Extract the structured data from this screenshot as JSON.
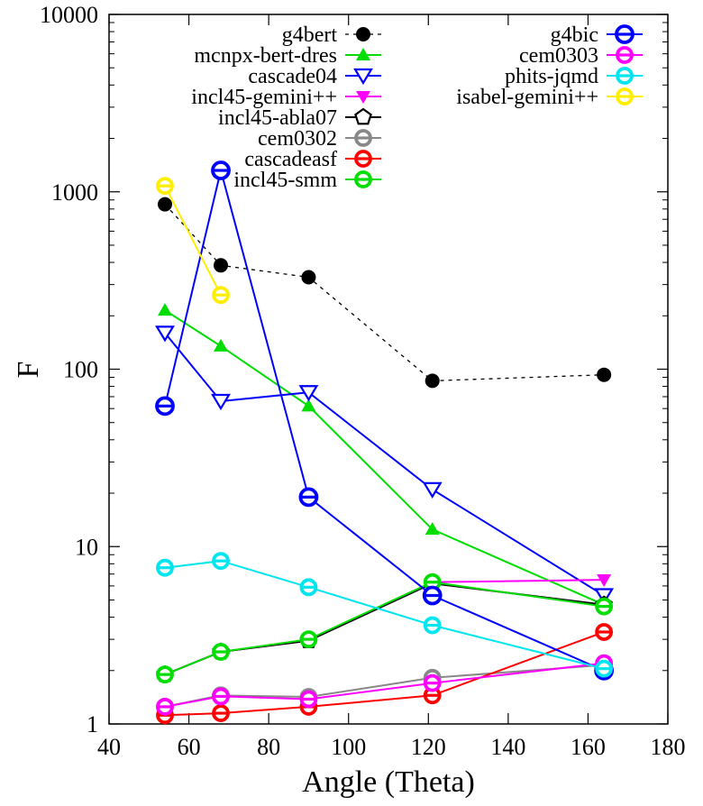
{
  "chart_data": {
    "type": "line",
    "title": "",
    "xlabel": "Angle (Theta)",
    "ylabel": "F",
    "xlim": [
      40,
      180
    ],
    "ylim": [
      1,
      10000
    ],
    "yscale": "log",
    "xticks": [
      "40",
      "60",
      "80",
      "100",
      "120",
      "140",
      "160",
      "180"
    ],
    "yticks": [
      "1",
      "10",
      "100",
      "1000",
      "10000"
    ],
    "legend_position": "top, two columns",
    "series": [
      {
        "name": "g4bert",
        "color": "#000000",
        "marker": "filled-circle",
        "dashed": true,
        "x": [
          54,
          68,
          90,
          121,
          164
        ],
        "y": [
          850,
          385,
          330,
          86,
          93
        ]
      },
      {
        "name": "mcnpx-bert-dres",
        "color": "#00dd00",
        "marker": "filled-triangle-up",
        "dashed": false,
        "x": [
          54,
          68,
          90,
          121,
          164
        ],
        "y": [
          215,
          135,
          62,
          12.5,
          4.7
        ]
      },
      {
        "name": "cascade04",
        "color": "#0000ff",
        "marker": "open-triangle-down",
        "dashed": false,
        "x": [
          54,
          68,
          90,
          121,
          164
        ],
        "y": [
          160,
          66,
          74,
          21,
          5.3
        ]
      },
      {
        "name": "incl45-gemini++",
        "color": "#ff00ff",
        "marker": "filled-triangle-down",
        "dashed": false,
        "x": [
          54,
          68,
          90,
          121,
          164
        ],
        "y": [
          1.9,
          2.55,
          2.95,
          6.3,
          6.5
        ]
      },
      {
        "name": "incl45-abla07",
        "color": "#000000",
        "marker": "open-pentagon",
        "dashed": false,
        "x": [
          54,
          68,
          90,
          121,
          164
        ],
        "y": [
          1.9,
          2.55,
          2.95,
          6.2,
          4.7
        ]
      },
      {
        "name": "cem0302",
        "color": "#888888",
        "marker": "circle-half",
        "dashed": false,
        "x": [
          54,
          68,
          90,
          121,
          164
        ],
        "y": [
          1.25,
          1.45,
          1.42,
          1.82,
          2.15
        ]
      },
      {
        "name": "cascadeasf",
        "color": "#ff0000",
        "marker": "circle-half",
        "dashed": false,
        "x": [
          54,
          68,
          90,
          121,
          164
        ],
        "y": [
          1.12,
          1.15,
          1.25,
          1.45,
          3.3
        ]
      },
      {
        "name": "incl45-smm",
        "color": "#00dd00",
        "marker": "circle-half",
        "dashed": false,
        "x": [
          54,
          68,
          90,
          121,
          164
        ],
        "y": [
          1.9,
          2.55,
          3.0,
          6.3,
          4.6
        ]
      },
      {
        "name": "g4bic",
        "color": "#0000ff",
        "marker": "circle-half-large",
        "dashed": false,
        "x": [
          54,
          68,
          90,
          121,
          164
        ],
        "y": [
          62,
          1320,
          19,
          5.3,
          2.0
        ]
      },
      {
        "name": "cem0303",
        "color": "#ff00ff",
        "marker": "circle-half",
        "dashed": false,
        "x": [
          54,
          68,
          90,
          121,
          164
        ],
        "y": [
          1.25,
          1.43,
          1.38,
          1.7,
          2.2
        ]
      },
      {
        "name": "phits-jqmd",
        "color": "#00e5ee",
        "marker": "circle-half",
        "dashed": false,
        "x": [
          54,
          68,
          90,
          121,
          164
        ],
        "y": [
          7.6,
          8.3,
          5.9,
          3.6,
          2.05
        ]
      },
      {
        "name": "isabel-gemini++",
        "color": "#ffee00",
        "marker": "circle-half",
        "dashed": false,
        "x": [
          54,
          68
        ],
        "y": [
          1080,
          262
        ]
      }
    ]
  }
}
